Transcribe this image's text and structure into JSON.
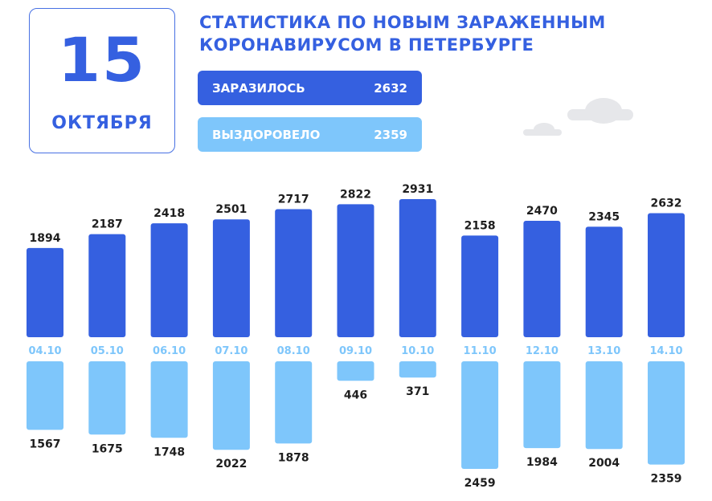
{
  "header": {
    "date_day": "15",
    "date_month": "ОКТЯБРЯ",
    "title": "СТАТИСТИКА ПО НОВЫМ ЗАРАЖЕННЫМ КОРОНАВИРУСОМ В ПЕТЕРБУРГЕ"
  },
  "summary": {
    "infected_label": "ЗАРАЗИЛОСЬ",
    "infected_value": "2632",
    "recovered_label": "ВЫЗДОРОВЕЛО",
    "recovered_value": "2359"
  },
  "colors": {
    "infected": "#3560e0",
    "recovered": "#7ec6fb",
    "date_label": "#7ec6fb",
    "value_text": "#1e1e1e"
  },
  "chart_data": {
    "type": "bar",
    "categories": [
      "04.10",
      "05.10",
      "06.10",
      "07.10",
      "08.10",
      "09.10",
      "10.10",
      "11.10",
      "12.10",
      "13.10",
      "14.10"
    ],
    "series": [
      {
        "name": "ЗАРАЗИЛОСЬ",
        "values": [
          1894,
          2187,
          2418,
          2501,
          2717,
          2822,
          2931,
          2158,
          2470,
          2345,
          2632
        ]
      },
      {
        "name": "ВЫЗДОРОВЕЛО",
        "values": [
          1567,
          1675,
          1748,
          2022,
          1878,
          446,
          371,
          2459,
          1984,
          2004,
          2359
        ]
      }
    ],
    "title": "",
    "xlabel": "",
    "ylabel": ""
  }
}
